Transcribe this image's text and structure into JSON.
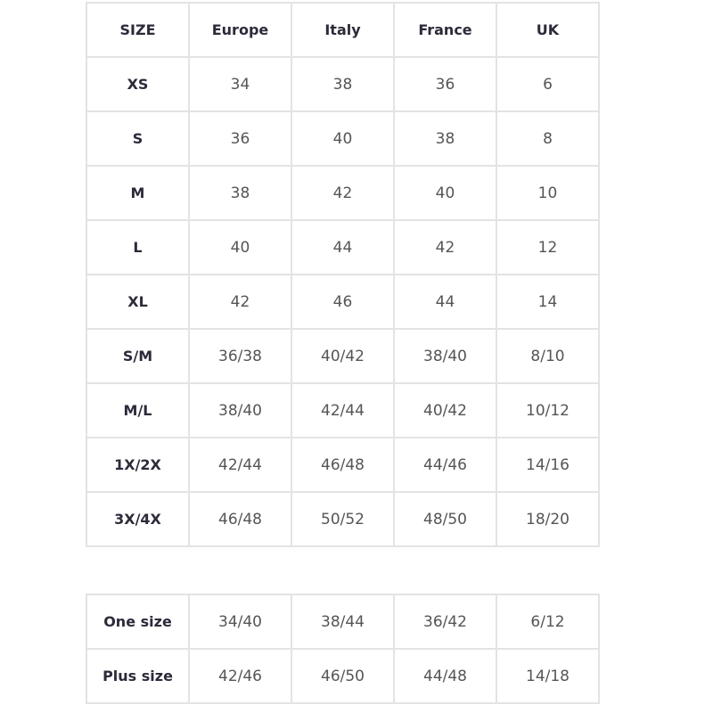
{
  "main_table": {
    "headers": [
      "SIZE",
      "Europe",
      "Italy",
      "France",
      "UK"
    ],
    "rows": [
      [
        "XS",
        "34",
        "38",
        "36",
        "6"
      ],
      [
        "S",
        "36",
        "40",
        "38",
        "8"
      ],
      [
        "M",
        "38",
        "42",
        "40",
        "10"
      ],
      [
        "L",
        "40",
        "44",
        "42",
        "12"
      ],
      [
        "XL",
        "42",
        "46",
        "44",
        "14"
      ],
      [
        "S/M",
        "36/38",
        "40/42",
        "38/40",
        "8/10"
      ],
      [
        "M/L",
        "38/40",
        "42/44",
        "40/42",
        "10/12"
      ],
      [
        "1X/2X",
        "42/44",
        "46/48",
        "44/46",
        "14/16"
      ],
      [
        "3X/4X",
        "46/48",
        "50/52",
        "48/50",
        "18/20"
      ]
    ]
  },
  "special_table": {
    "rows": [
      [
        "One size",
        "34/40",
        "38/44",
        "36/42",
        "6/12"
      ],
      [
        "Plus size",
        "42/46",
        "46/50",
        "44/48",
        "14/18"
      ]
    ]
  }
}
